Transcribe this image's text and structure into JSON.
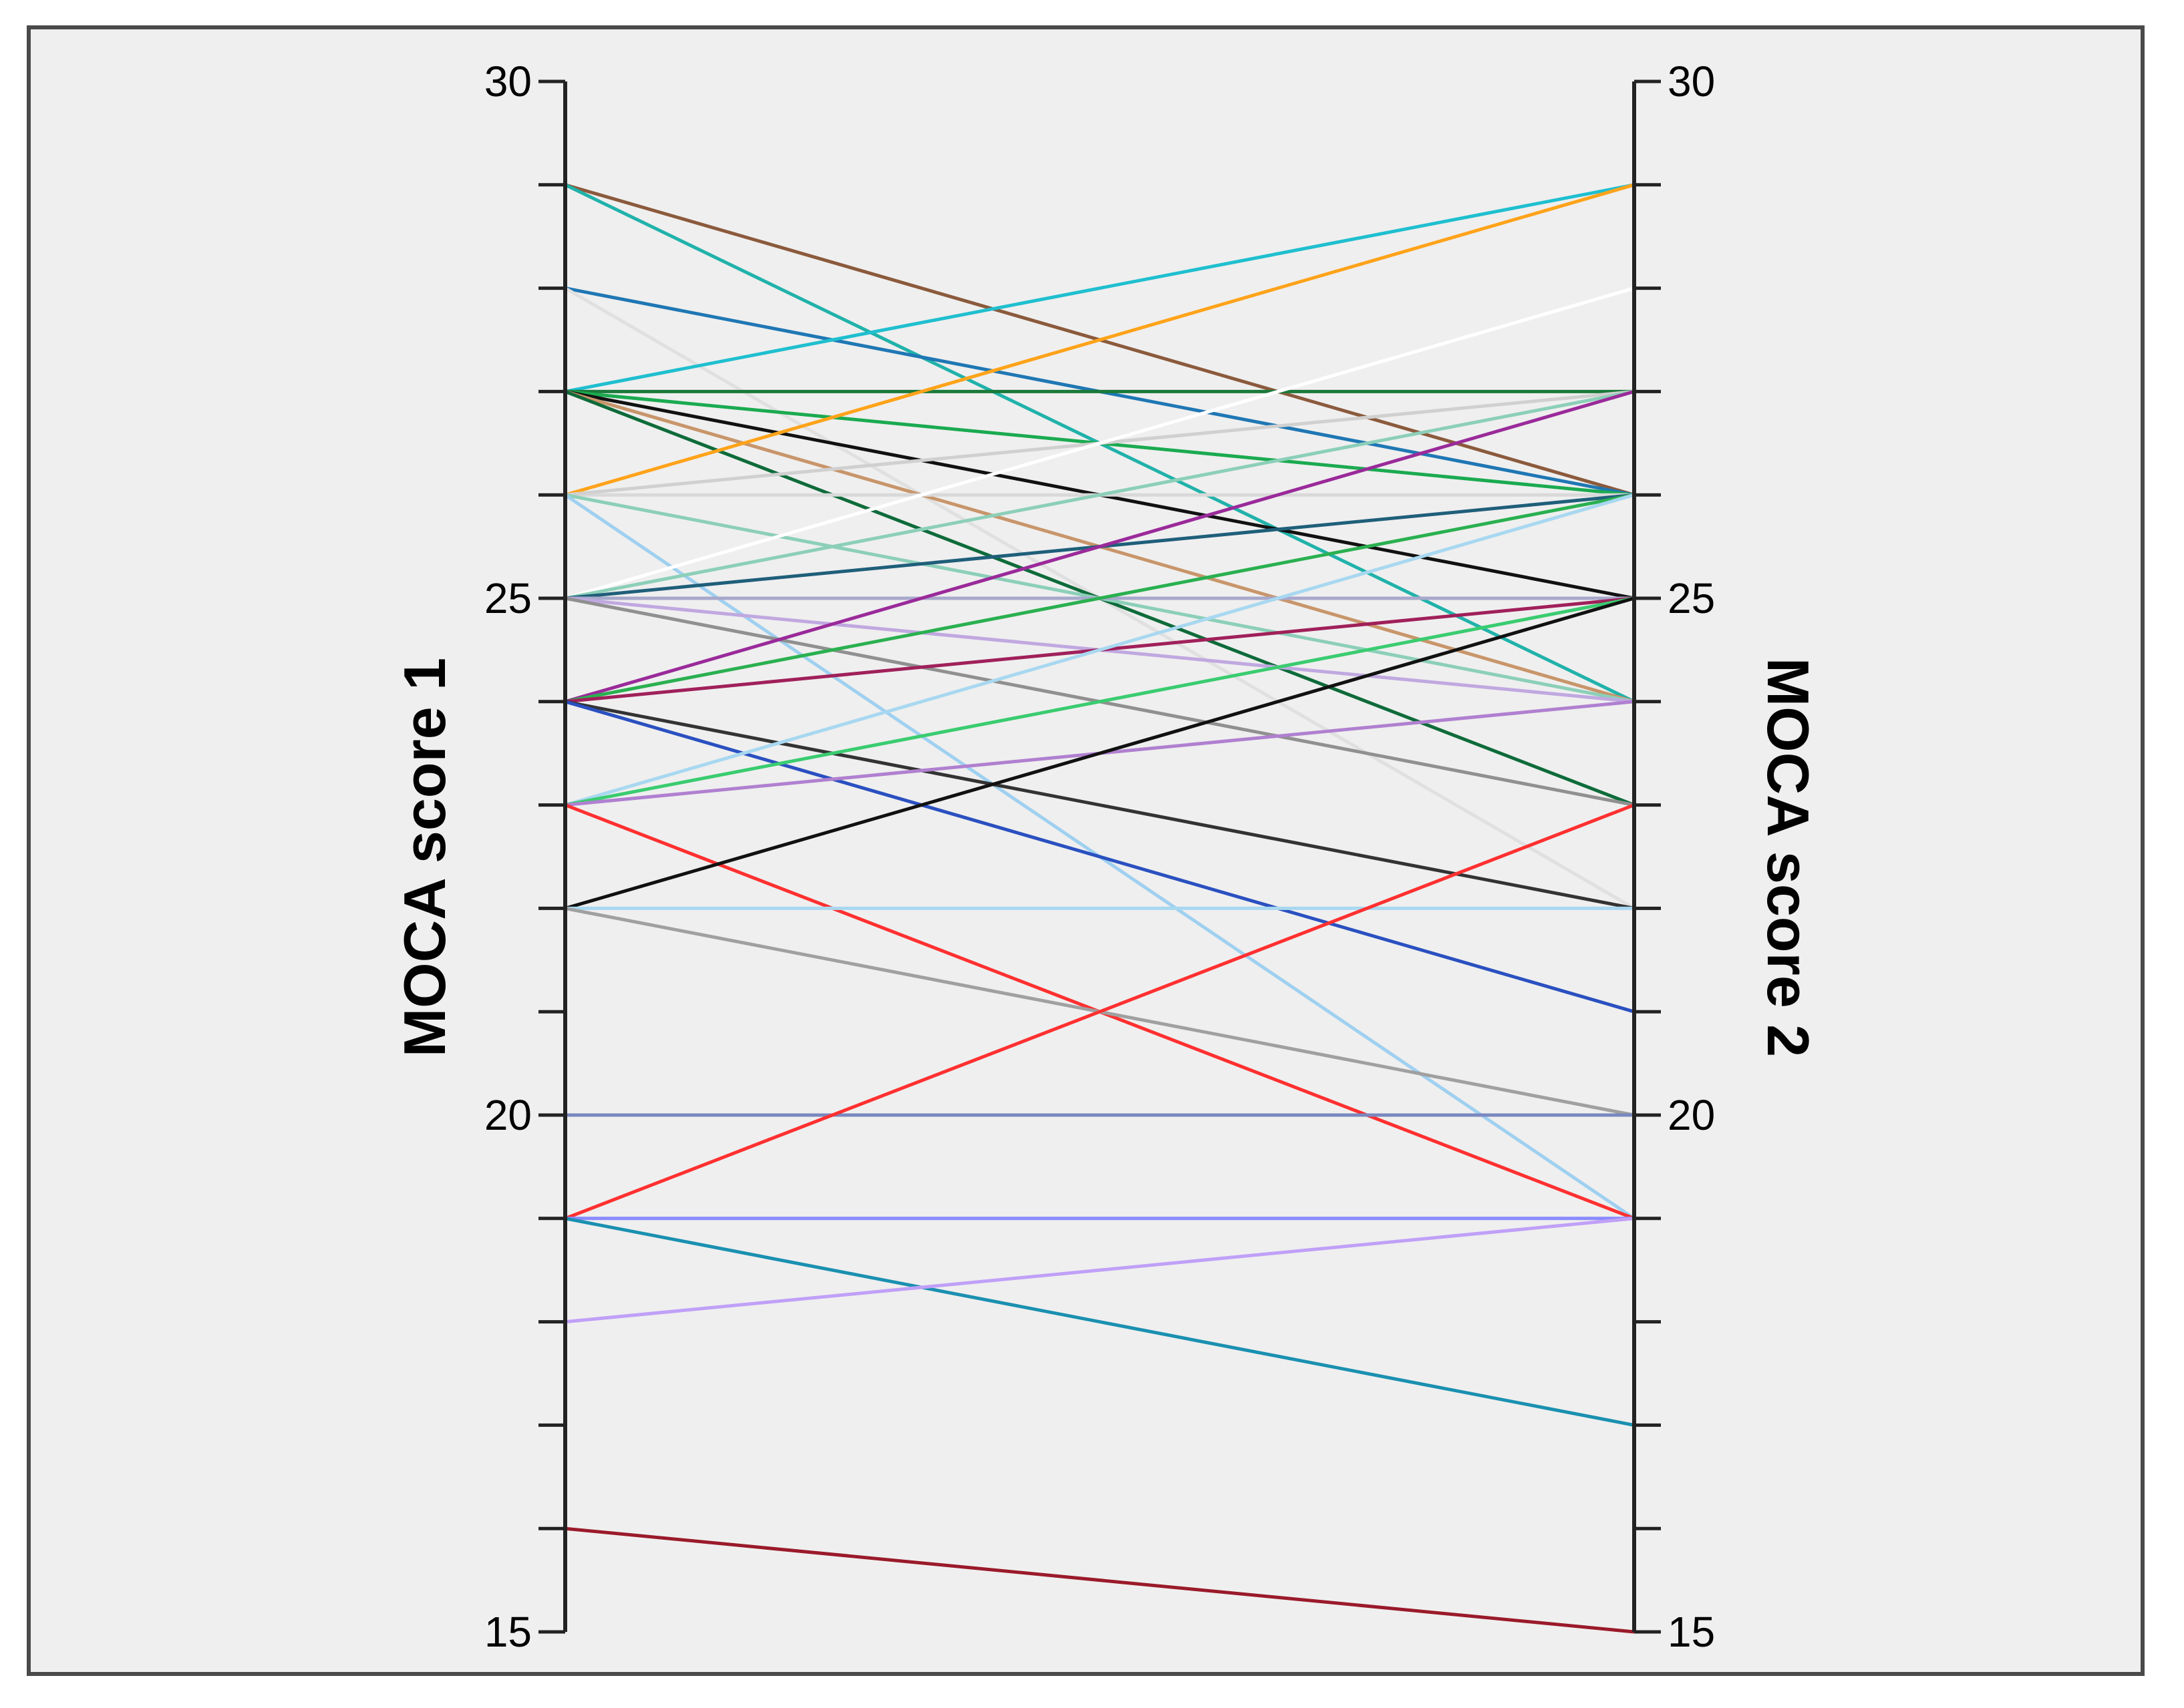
{
  "chart_data": {
    "type": "line",
    "chart_kind": "parallel-axes slope plot",
    "left_axis": {
      "label": "MOCA score 1",
      "ylim": [
        15,
        30
      ],
      "tick_labels": [
        "15",
        "20",
        "25",
        "30"
      ],
      "minor_tick_step": 1
    },
    "right_axis": {
      "label": "MOCA score 2",
      "ylim": [
        15,
        30
      ],
      "tick_labels": [
        "15",
        "20",
        "25",
        "30"
      ],
      "minor_tick_step": 1
    },
    "grid": false,
    "legend": "none",
    "background_color": "#efefef",
    "series": [
      {
        "x": [
          "MOCA score 1",
          "MOCA score 2"
        ],
        "values": [
          29,
          26
        ],
        "color": "#8b5a3c"
      },
      {
        "x": [
          "MOCA score 1",
          "MOCA score 2"
        ],
        "values": [
          29,
          24
        ],
        "color": "#20b2aa"
      },
      {
        "x": [
          "MOCA score 1",
          "MOCA score 2"
        ],
        "values": [
          28,
          26
        ],
        "color": "#1f77b4"
      },
      {
        "x": [
          "MOCA score 1",
          "MOCA score 2"
        ],
        "values": [
          28,
          22
        ],
        "color": "#e0e0e0"
      },
      {
        "x": [
          "MOCA score 1",
          "MOCA score 2"
        ],
        "values": [
          27,
          29
        ],
        "color": "#1fbfcf"
      },
      {
        "x": [
          "MOCA score 1",
          "MOCA score 2"
        ],
        "values": [
          27,
          27
        ],
        "color": "#1a7a3a"
      },
      {
        "x": [
          "MOCA score 1",
          "MOCA score 2"
        ],
        "values": [
          27,
          26
        ],
        "color": "#1aaa50"
      },
      {
        "x": [
          "MOCA score 1",
          "MOCA score 2"
        ],
        "values": [
          27,
          25
        ],
        "color": "#111111"
      },
      {
        "x": [
          "MOCA score 1",
          "MOCA score 2"
        ],
        "values": [
          27,
          24
        ],
        "color": "#c8956a"
      },
      {
        "x": [
          "MOCA score 1",
          "MOCA score 2"
        ],
        "values": [
          27,
          23
        ],
        "color": "#0e6b3a"
      },
      {
        "x": [
          "MOCA score 1",
          "MOCA score 2"
        ],
        "values": [
          26,
          29
        ],
        "color": "#ffa31a"
      },
      {
        "x": [
          "MOCA score 1",
          "MOCA score 2"
        ],
        "values": [
          26,
          26
        ],
        "color": "#d9d9d9"
      },
      {
        "x": [
          "MOCA score 1",
          "MOCA score 2"
        ],
        "values": [
          26,
          27
        ],
        "color": "#d0d0d0"
      },
      {
        "x": [
          "MOCA score 1",
          "MOCA score 2"
        ],
        "values": [
          26,
          24
        ],
        "color": "#8ccfb8"
      },
      {
        "x": [
          "MOCA score 1",
          "MOCA score 2"
        ],
        "values": [
          26,
          19
        ],
        "color": "#9fd0f0"
      },
      {
        "x": [
          "MOCA score 1",
          "MOCA score 2"
        ],
        "values": [
          25,
          28
        ],
        "color": "#ffffff"
      },
      {
        "x": [
          "MOCA score 1",
          "MOCA score 2"
        ],
        "values": [
          25,
          27
        ],
        "color": "#8ccfb8"
      },
      {
        "x": [
          "MOCA score 1",
          "MOCA score 2"
        ],
        "values": [
          25,
          26
        ],
        "color": "#1f5f7a"
      },
      {
        "x": [
          "MOCA score 1",
          "MOCA score 2"
        ],
        "values": [
          25,
          25
        ],
        "color": "#a8a8cc"
      },
      {
        "x": [
          "MOCA score 1",
          "MOCA score 2"
        ],
        "values": [
          25,
          24
        ],
        "color": "#c0a8e0"
      },
      {
        "x": [
          "MOCA score 1",
          "MOCA score 2"
        ],
        "values": [
          25,
          23
        ],
        "color": "#909090"
      },
      {
        "x": [
          "MOCA score 1",
          "MOCA score 2"
        ],
        "values": [
          24,
          27
        ],
        "color": "#9a2a9a"
      },
      {
        "x": [
          "MOCA score 1",
          "MOCA score 2"
        ],
        "values": [
          24,
          26
        ],
        "color": "#2ab050"
      },
      {
        "x": [
          "MOCA score 1",
          "MOCA score 2"
        ],
        "values": [
          24,
          25
        ],
        "color": "#a0205a"
      },
      {
        "x": [
          "MOCA score 1",
          "MOCA score 2"
        ],
        "values": [
          24,
          22
        ],
        "color": "#333333"
      },
      {
        "x": [
          "MOCA score 1",
          "MOCA score 2"
        ],
        "values": [
          24,
          21
        ],
        "color": "#2a50c0"
      },
      {
        "x": [
          "MOCA score 1",
          "MOCA score 2"
        ],
        "values": [
          23,
          26
        ],
        "color": "#a8d8f0"
      },
      {
        "x": [
          "MOCA score 1",
          "MOCA score 2"
        ],
        "values": [
          23,
          25
        ],
        "color": "#3acc70"
      },
      {
        "x": [
          "MOCA score 1",
          "MOCA score 2"
        ],
        "values": [
          23,
          24
        ],
        "color": "#b080d0"
      },
      {
        "x": [
          "MOCA score 1",
          "MOCA score 2"
        ],
        "values": [
          23,
          19
        ],
        "color": "#ff3030"
      },
      {
        "x": [
          "MOCA score 1",
          "MOCA score 2"
        ],
        "values": [
          22,
          25
        ],
        "color": "#111111"
      },
      {
        "x": [
          "MOCA score 1",
          "MOCA score 2"
        ],
        "values": [
          22,
          22
        ],
        "color": "#a8d8f0"
      },
      {
        "x": [
          "MOCA score 1",
          "MOCA score 2"
        ],
        "values": [
          22,
          20
        ],
        "color": "#a0a0a0"
      },
      {
        "x": [
          "MOCA score 1",
          "MOCA score 2"
        ],
        "values": [
          20,
          20
        ],
        "color": "#7a88c0"
      },
      {
        "x": [
          "MOCA score 1",
          "MOCA score 2"
        ],
        "values": [
          19,
          23
        ],
        "color": "#ff3030"
      },
      {
        "x": [
          "MOCA score 1",
          "MOCA score 2"
        ],
        "values": [
          19,
          19
        ],
        "color": "#8a8aff"
      },
      {
        "x": [
          "MOCA score 1",
          "MOCA score 2"
        ],
        "values": [
          19,
          17
        ],
        "color": "#1a90b0"
      },
      {
        "x": [
          "MOCA score 1",
          "MOCA score 2"
        ],
        "values": [
          18,
          19
        ],
        "color": "#c0a0f8"
      },
      {
        "x": [
          "MOCA score 1",
          "MOCA score 2"
        ],
        "values": [
          16,
          15
        ],
        "color": "#9a1a2a"
      }
    ]
  }
}
